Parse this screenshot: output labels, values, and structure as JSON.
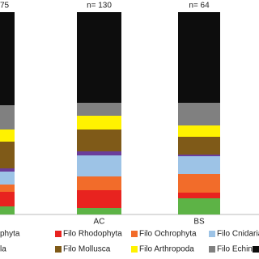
{
  "chart_data": {
    "type": "stacked-bar",
    "annotations": [
      "75",
      "n= 130",
      "n= 64"
    ],
    "categories": [
      null,
      "AC",
      "BS"
    ],
    "ylim": [
      0,
      100
    ],
    "series": [
      {
        "name": "phyta",
        "color": "#5db346",
        "values": [
          4,
          3.2,
          8
        ]
      },
      {
        "name": "Filo Rhodophyta",
        "color": "#e8231f",
        "values": [
          7.2,
          8.8,
          2.8
        ]
      },
      {
        "name": "Filo Ochrophyta",
        "color": "#f26c2a",
        "values": [
          3.6,
          6.8,
          9.2
        ]
      },
      {
        "name": "Filo Cnidaria",
        "color": "#9dc3e6",
        "values": [
          6.4,
          10.4,
          8.8
        ]
      },
      {
        "name": "la",
        "color": "#6a3d9a",
        "values": [
          1.6,
          2,
          0.8
        ]
      },
      {
        "name": "Filo Mollusca",
        "color": "#7f5a18",
        "values": [
          13.2,
          10.8,
          8.8
        ]
      },
      {
        "name": "Filo Arthropoda",
        "color": "#fff200",
        "values": [
          6,
          6.8,
          5.6
        ]
      },
      {
        "name": "Filo Echinodermata",
        "color": "#808080",
        "values": [
          12,
          6.4,
          11.2
        ]
      },
      {
        "name": null,
        "color": "#0d0d0d",
        "values": [
          46,
          44.8,
          44.8
        ]
      }
    ]
  }
}
